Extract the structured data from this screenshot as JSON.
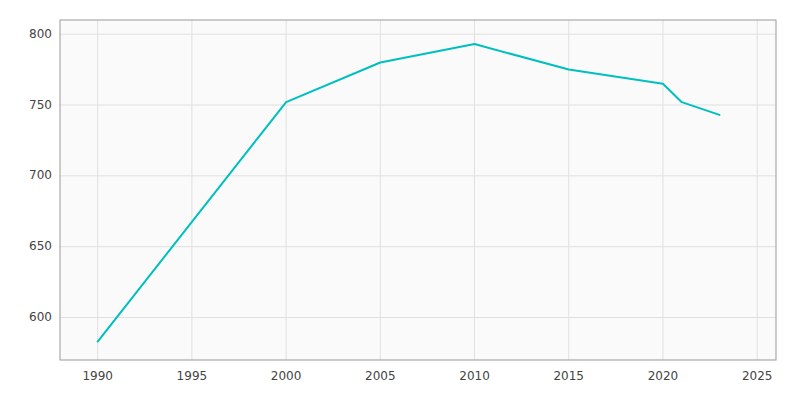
{
  "chart_data": {
    "type": "line",
    "x": [
      1990,
      2000,
      2005,
      2010,
      2015,
      2020,
      2021,
      2023
    ],
    "values": [
      583,
      752,
      780,
      793,
      775,
      765,
      752,
      743
    ],
    "color": "#00BFBF",
    "xlim": [
      1988,
      2026
    ],
    "ylim": [
      570,
      810
    ],
    "xticks": [
      1990,
      1995,
      2000,
      2005,
      2010,
      2015,
      2020,
      2025
    ],
    "yticks": [
      600,
      650,
      700,
      750,
      800
    ],
    "grid": true
  }
}
